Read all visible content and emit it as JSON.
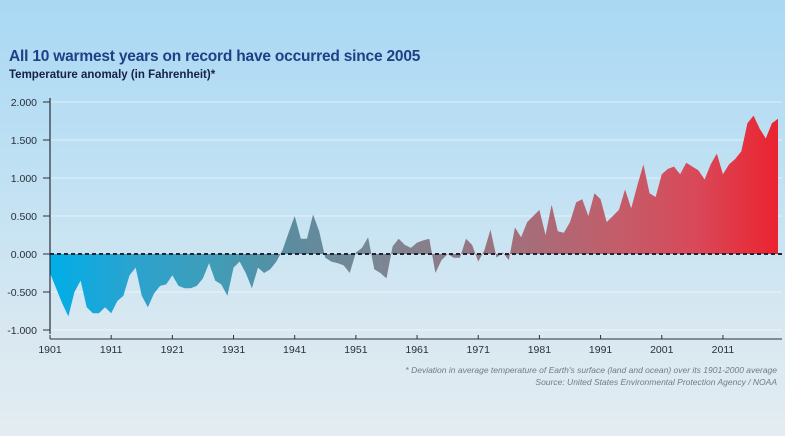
{
  "chart_data": {
    "type": "area",
    "title": "All 10 warmest years on record have occurred since 2005",
    "subtitle": "Temperature anomaly (in Fahrenheit)*",
    "xlabel": "",
    "ylabel": "",
    "xlim": [
      1901,
      2020
    ],
    "ylim": [
      -1.0,
      2.0
    ],
    "grid": true,
    "y_ticks": [
      -1.0,
      -0.5,
      0.0,
      0.5,
      1.0,
      1.5,
      2.0
    ],
    "y_tick_labels": [
      "-1.000",
      "-0.500",
      "0.000",
      "0.500",
      "1.000",
      "1.500",
      "2.000"
    ],
    "x_ticks": [
      1901,
      1911,
      1921,
      1931,
      1941,
      1951,
      1961,
      1971,
      1981,
      1991,
      2001,
      2011
    ],
    "x_tick_labels": [
      "1901",
      "1911",
      "1921",
      "1931",
      "1941",
      "1951",
      "1961",
      "1971",
      "1981",
      "1991",
      "2001",
      "2011"
    ],
    "series": [
      {
        "x": [
          1901,
          1902,
          1903,
          1904,
          1905,
          1906,
          1907,
          1908,
          1909,
          1910,
          1911,
          1912,
          1913,
          1914,
          1915,
          1916,
          1917,
          1918,
          1919,
          1920,
          1921,
          1922,
          1923,
          1924,
          1925,
          1926,
          1927,
          1928,
          1929,
          1930,
          1931,
          1932,
          1933,
          1934,
          1935,
          1936,
          1937,
          1938,
          1939,
          1940,
          1941,
          1942,
          1943,
          1944,
          1945,
          1946,
          1947,
          1948,
          1949,
          1950,
          1951,
          1952,
          1953,
          1954,
          1955,
          1956,
          1957,
          1958,
          1959,
          1960,
          1961,
          1962,
          1963,
          1964,
          1965,
          1966,
          1967,
          1968,
          1969,
          1970,
          1971,
          1972,
          1973,
          1974,
          1975,
          1976,
          1977,
          1978,
          1979,
          1980,
          1981,
          1982,
          1983,
          1984,
          1985,
          1986,
          1987,
          1988,
          1989,
          1990,
          1991,
          1992,
          1993,
          1994,
          1995,
          1996,
          1997,
          1998,
          1999,
          2000,
          2001,
          2002,
          2003,
          2004,
          2005,
          2006,
          2007,
          2008,
          2009,
          2010,
          2011,
          2012,
          2013,
          2014,
          2015,
          2016,
          2017,
          2018,
          2019,
          2020
        ],
        "values": [
          -0.25,
          -0.45,
          -0.65,
          -0.82,
          -0.5,
          -0.35,
          -0.7,
          -0.78,
          -0.78,
          -0.7,
          -0.78,
          -0.62,
          -0.55,
          -0.28,
          -0.18,
          -0.55,
          -0.7,
          -0.52,
          -0.42,
          -0.4,
          -0.28,
          -0.42,
          -0.45,
          -0.45,
          -0.42,
          -0.32,
          -0.12,
          -0.35,
          -0.4,
          -0.55,
          -0.18,
          -0.1,
          -0.25,
          -0.45,
          -0.18,
          -0.25,
          -0.2,
          -0.1,
          0.05,
          0.28,
          0.5,
          0.2,
          0.2,
          0.52,
          0.3,
          -0.05,
          -0.1,
          -0.12,
          -0.15,
          -0.25,
          0.02,
          0.08,
          0.22,
          -0.2,
          -0.25,
          -0.32,
          0.1,
          0.2,
          0.12,
          0.08,
          0.15,
          0.18,
          0.2,
          -0.25,
          -0.08,
          0.0,
          -0.05,
          -0.05,
          0.2,
          0.12,
          -0.1,
          0.05,
          0.32,
          -0.05,
          0.02,
          -0.08,
          0.35,
          0.22,
          0.42,
          0.5,
          0.58,
          0.25,
          0.65,
          0.3,
          0.28,
          0.42,
          0.68,
          0.72,
          0.5,
          0.8,
          0.72,
          0.42,
          0.5,
          0.58,
          0.85,
          0.6,
          0.9,
          1.18,
          0.8,
          0.75,
          1.05,
          1.12,
          1.15,
          1.05,
          1.2,
          1.15,
          1.1,
          0.98,
          1.18,
          1.32,
          1.05,
          1.18,
          1.25,
          1.35,
          1.72,
          1.82,
          1.65,
          1.52,
          1.72,
          1.78
        ]
      }
    ],
    "color_scale": [
      "#00aee8",
      "#2aa3cf",
      "#3f9db8",
      "#5c8c9e",
      "#7a8795",
      "#8e7a86",
      "#a86c78",
      "#c35d6a",
      "#d94858",
      "#eb2330"
    ],
    "footnote": "* Deviation in average temperature of Earth's surface (land and ocean) over its 1901-2000 average",
    "source": "Source: United States Environmental Protection Agency / NOAA"
  }
}
